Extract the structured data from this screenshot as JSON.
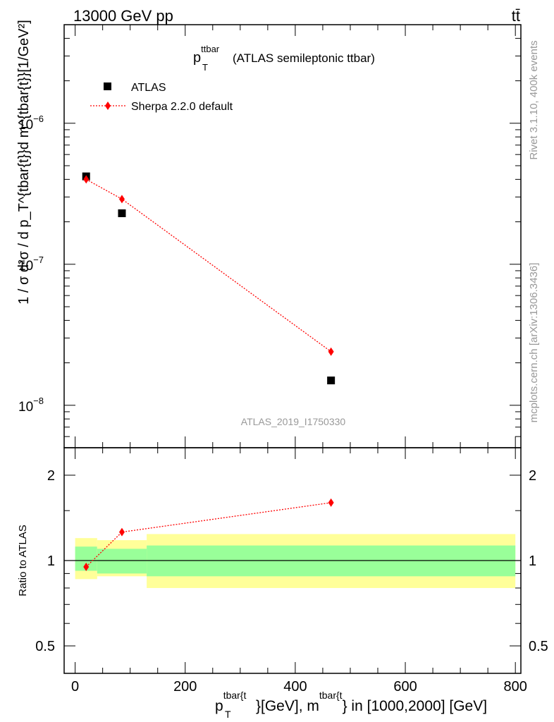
{
  "header": {
    "energy_label": "13000 GeV pp",
    "process_label": "tt̄"
  },
  "side": {
    "rivet_label": "Rivet 3.1.10,  400k events",
    "site_label": "mcplots.cern.ch [arXiv:1306.3436]"
  },
  "chart_data": [
    {
      "type": "scatter",
      "title": {
        "var_main": "p",
        "var_sub": "T",
        "var_sup": "ttbar",
        "rest": "(ATLAS semileptonic ttbar)"
      },
      "ylabel": "1 / σ d²σ / d p_T^{tbar{t}}d m^{tbar{t}}[1/GeV²]",
      "yscale": "log",
      "ylim": [
        5e-09,
        5e-06
      ],
      "xlim": [
        -20,
        810
      ],
      "ytick_labels": [
        {
          "mant": "10",
          "exp": "−6",
          "value": 1e-06
        },
        {
          "mant": "10",
          "exp": "−7",
          "value": 1e-07
        },
        {
          "mant": "10",
          "exp": "−8",
          "value": 1e-08
        }
      ],
      "watermark": "ATLAS_2019_I1750330",
      "legend": {
        "position": "top-left",
        "entries": [
          "ATLAS",
          "Sherpa 2.2.0 default"
        ]
      },
      "series": [
        {
          "name": "ATLAS",
          "color": "#000000",
          "marker": "square",
          "x": [
            20,
            85,
            465
          ],
          "y": [
            4.2e-07,
            2.3e-07,
            1.5e-08
          ],
          "bin_edges": [
            [
              0,
              40
            ],
            [
              40,
              130
            ],
            [
              130,
              800
            ]
          ]
        },
        {
          "name": "Sherpa 2.2.0 default",
          "color": "#ff0000",
          "marker": "diamond",
          "x": [
            20,
            85,
            465
          ],
          "y": [
            4e-07,
            2.9e-07,
            2.4e-08
          ]
        }
      ]
    },
    {
      "type": "scatter",
      "ylabel": "Ratio to ATLAS",
      "yscale": "log",
      "ylim": [
        0.4,
        2.5
      ],
      "xlim": [
        -20,
        810
      ],
      "ytick_labels": [
        {
          "label": "2",
          "value": 2
        },
        {
          "label": "1",
          "value": 1
        },
        {
          "label": "0.5",
          "value": 0.5
        }
      ],
      "xtick_labels": [
        {
          "label": "0",
          "value": 0
        },
        {
          "label": "200",
          "value": 200
        },
        {
          "label": "400",
          "value": 400
        },
        {
          "label": "600",
          "value": 600
        },
        {
          "label": "800",
          "value": 800
        }
      ],
      "xlabel": {
        "p": "p",
        "p_sub": "T",
        "p_sup": "tbar{t",
        "mid": "}[GeV], m",
        "m_sup": "tbar{t",
        "tail": "} in [1000,2000] [GeV]"
      },
      "bands": {
        "bin_edges": [
          [
            0,
            40
          ],
          [
            40,
            130
          ],
          [
            130,
            800
          ]
        ],
        "stat_band": [
          [
            0.92,
            1.12
          ],
          [
            0.9,
            1.1
          ],
          [
            0.88,
            1.13
          ]
        ],
        "total_band": [
          [
            0.86,
            1.2
          ],
          [
            0.88,
            1.18
          ],
          [
            0.8,
            1.24
          ]
        ],
        "stat_color": "#99ff99",
        "total_color": "#ffff99"
      },
      "series": [
        {
          "name": "Sherpa 2.2.0 default",
          "color": "#ff0000",
          "marker": "diamond",
          "x": [
            20,
            85,
            465
          ],
          "y": [
            0.95,
            1.26,
            1.6
          ]
        }
      ]
    }
  ]
}
